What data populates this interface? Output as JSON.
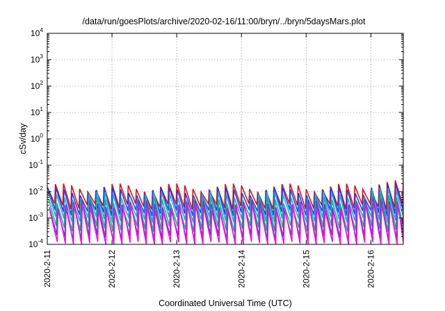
{
  "chart_data": {
    "type": "line",
    "title": "/data/run/goesPlots/archive/2020-02-16/11:00/bryn/../bryn/5daysMars.plot",
    "xlabel": "Coordinated Universal Time (UTC)",
    "ylabel": "cSv/day",
    "yscale": "log",
    "ylim": [
      0.0001,
      10000
    ],
    "xlim": [
      0,
      5.5
    ],
    "y_tick_exponents": [
      "-4",
      "-3",
      "-2",
      "-1",
      "0",
      "1",
      "2",
      "3",
      "4"
    ],
    "x_ticks": [
      {
        "value": 0,
        "label": "2020-2-11"
      },
      {
        "value": 1,
        "label": "2020-2-12"
      },
      {
        "value": 2,
        "label": "2020-2-13"
      },
      {
        "value": 3,
        "label": "2020-2-14"
      },
      {
        "value": 4,
        "label": "2020-2-15"
      },
      {
        "value": 5,
        "label": "2020-2-16"
      }
    ],
    "grid": true,
    "sawtooth_period_days": 0.125,
    "series": [
      {
        "color": "#e0101e",
        "peak": 0.015,
        "trough": 0.0028
      },
      {
        "color": "#1f3fe0",
        "peak": 0.011,
        "trough": 0.0016
      },
      {
        "color": "#1ea7e8",
        "peak": 0.0075,
        "trough": 0.0009
      },
      {
        "color": "#18b38a",
        "peak": 0.0048,
        "trough": 0.0004
      },
      {
        "color": "#7a2fd0",
        "peak": 0.0035,
        "trough": 0.00018
      },
      {
        "color": "#e818d8",
        "peak": 0.0028,
        "trough": 0.0001
      }
    ]
  }
}
